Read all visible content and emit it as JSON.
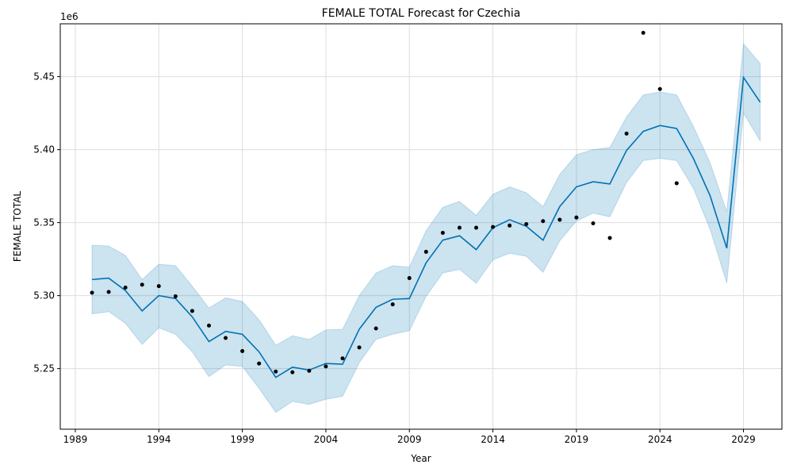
{
  "chart_data": {
    "type": "line",
    "title": "FEMALE TOTAL Forecast for Czechia",
    "xlabel": "Year",
    "ylabel": "FEMALE TOTAL",
    "offset_label": "1e6",
    "xlim": [
      1988.1,
      2031.3
    ],
    "ylim": [
      5.2085,
      5.4862
    ],
    "x_ticks": [
      1989,
      1994,
      1999,
      2004,
      2009,
      2014,
      2019,
      2024,
      2029
    ],
    "x_tick_labels": [
      "1989",
      "1994",
      "1999",
      "2004",
      "2009",
      "2014",
      "2019",
      "2024",
      "2029"
    ],
    "y_ticks": [
      5.25,
      5.3,
      5.35,
      5.4,
      5.45
    ],
    "y_tick_labels": [
      "5.25",
      "5.30",
      "5.35",
      "5.40",
      "5.45"
    ],
    "grid": true,
    "colors": {
      "forecast": "#0072b2",
      "band": "#0072b2",
      "actual": "#000000"
    },
    "actual": {
      "x": [
        1990,
        1991,
        1992,
        1993,
        1994,
        1995,
        1996,
        1997,
        1998,
        1999,
        2000,
        2001,
        2002,
        2003,
        2004,
        2005,
        2006,
        2007,
        2008,
        2009,
        2010,
        2011,
        2012,
        2013,
        2014,
        2015,
        2016,
        2017,
        2018,
        2019,
        2020,
        2021,
        2022,
        2023,
        2024,
        2025
      ],
      "y": [
        5.302,
        5.3025,
        5.3055,
        5.3075,
        5.3065,
        5.2995,
        5.2895,
        5.2795,
        5.271,
        5.262,
        5.2535,
        5.248,
        5.2475,
        5.2485,
        5.2515,
        5.257,
        5.2645,
        5.2775,
        5.294,
        5.312,
        5.33,
        5.343,
        5.3465,
        5.3465,
        5.347,
        5.348,
        5.349,
        5.351,
        5.352,
        5.3535,
        5.3495,
        5.3395,
        5.411,
        5.48,
        5.4415,
        5.377
      ]
    },
    "forecast": {
      "x": [
        1990,
        1991,
        1992,
        1993,
        1994,
        1995,
        1996,
        1997,
        1998,
        1999,
        2000,
        2001,
        2002,
        2003,
        2004,
        2005,
        2006,
        2007,
        2008,
        2009,
        2010,
        2011,
        2012,
        2013,
        2014,
        2015,
        2016,
        2017,
        2018,
        2019,
        2020,
        2021,
        2022,
        2023,
        2024,
        2025,
        2026,
        2027,
        2028,
        2029,
        2030
      ],
      "yhat": [
        5.311,
        5.312,
        5.3035,
        5.2895,
        5.3,
        5.298,
        5.2855,
        5.2685,
        5.2755,
        5.2735,
        5.2615,
        5.244,
        5.251,
        5.249,
        5.2535,
        5.253,
        5.277,
        5.292,
        5.2975,
        5.298,
        5.3225,
        5.338,
        5.341,
        5.3315,
        5.3465,
        5.352,
        5.3475,
        5.338,
        5.361,
        5.3745,
        5.378,
        5.3765,
        5.3995,
        5.4125,
        5.4165,
        5.4145,
        5.394,
        5.3685,
        5.3325,
        5.4495,
        5.4325
      ],
      "lower": [
        5.2875,
        5.289,
        5.281,
        5.2665,
        5.278,
        5.2735,
        5.2615,
        5.2445,
        5.2525,
        5.2515,
        5.2365,
        5.22,
        5.2275,
        5.2255,
        5.229,
        5.231,
        5.254,
        5.27,
        5.2735,
        5.276,
        5.2995,
        5.3155,
        5.318,
        5.3085,
        5.3245,
        5.329,
        5.327,
        5.316,
        5.3375,
        5.351,
        5.3565,
        5.354,
        5.3775,
        5.3925,
        5.394,
        5.3925,
        5.3735,
        5.3455,
        5.3085,
        5.425,
        5.406
      ],
      "upper": [
        5.3345,
        5.334,
        5.3275,
        5.311,
        5.3215,
        5.3205,
        5.3065,
        5.2915,
        5.2985,
        5.296,
        5.2835,
        5.266,
        5.2725,
        5.27,
        5.2765,
        5.277,
        5.3,
        5.3155,
        5.3205,
        5.3195,
        5.3445,
        5.3605,
        5.3645,
        5.355,
        5.3695,
        5.3745,
        5.3705,
        5.361,
        5.383,
        5.3965,
        5.4,
        5.4015,
        5.4225,
        5.4375,
        5.4395,
        5.4375,
        5.416,
        5.391,
        5.3575,
        5.4725,
        5.459
      ]
    }
  }
}
